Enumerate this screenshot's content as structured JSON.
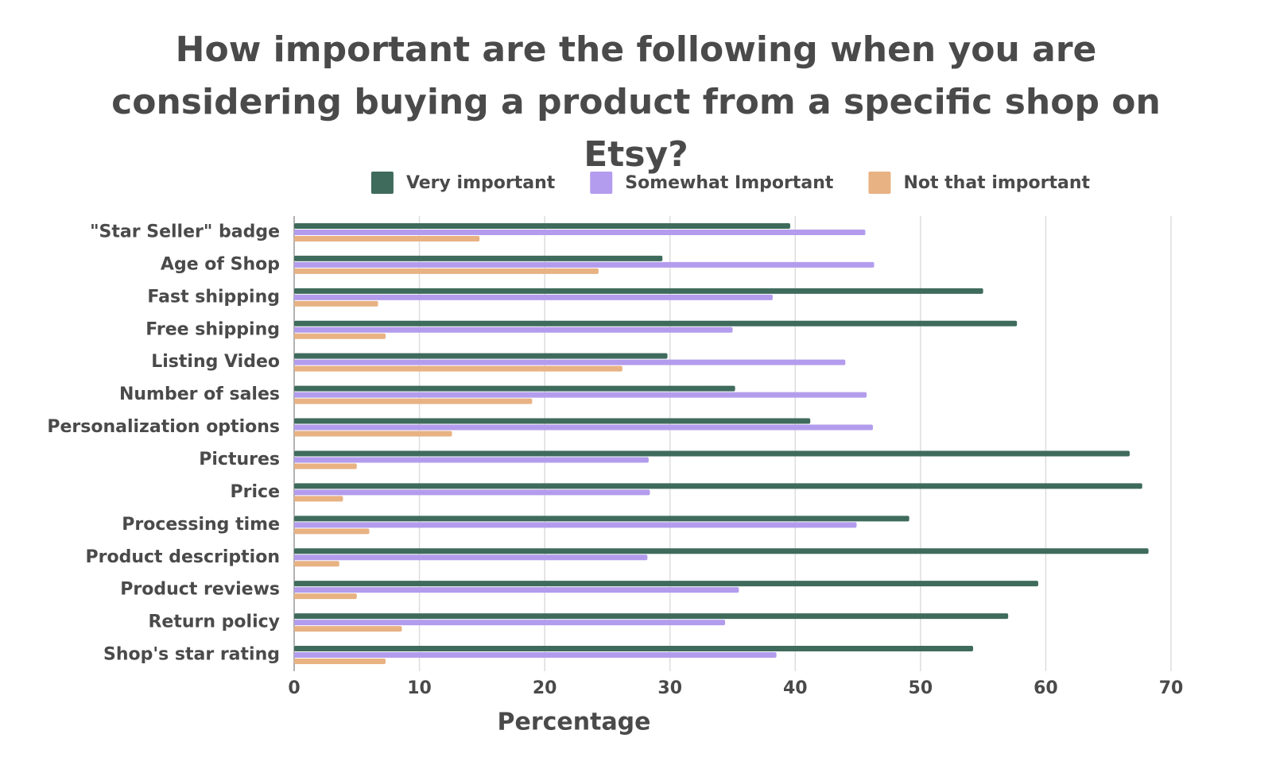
{
  "chart_data": {
    "type": "bar",
    "orientation": "horizontal",
    "title": "How important are the following when you are considering buying a product from a specific shop on Etsy?",
    "x_label": "Percentage",
    "categories": [
      "\"Star Seller\" badge",
      "Age of Shop",
      "Fast shipping",
      "Free shipping",
      "Listing Video",
      "Number of sales",
      "Personalization options",
      "Pictures",
      "Price",
      "Processing time",
      "Product description",
      "Product reviews",
      "Return policy",
      "Shop's star rating"
    ],
    "series": [
      {
        "name": "Very important",
        "color": "#3f6b5c",
        "values": [
          39.6,
          29.4,
          55.0,
          57.7,
          29.8,
          35.2,
          41.2,
          66.7,
          67.7,
          49.1,
          68.2,
          59.4,
          57.0,
          54.2
        ]
      },
      {
        "name": "Somewhat Important",
        "color": "#b39ced",
        "values": [
          45.6,
          46.3,
          38.2,
          35.0,
          44.0,
          45.7,
          46.2,
          28.3,
          28.4,
          44.9,
          28.2,
          35.5,
          34.4,
          38.5
        ]
      },
      {
        "name": "Not that important",
        "color": "#e8b283",
        "values": [
          14.8,
          24.3,
          6.7,
          7.3,
          26.2,
          19.0,
          12.6,
          5.0,
          3.9,
          6.0,
          3.6,
          5.0,
          8.6,
          7.3
        ]
      }
    ],
    "xlim": [
      0,
      70
    ],
    "xticks": [
      0,
      10,
      20,
      30,
      40,
      50,
      60,
      70
    ],
    "grid": true,
    "legend": "top"
  }
}
